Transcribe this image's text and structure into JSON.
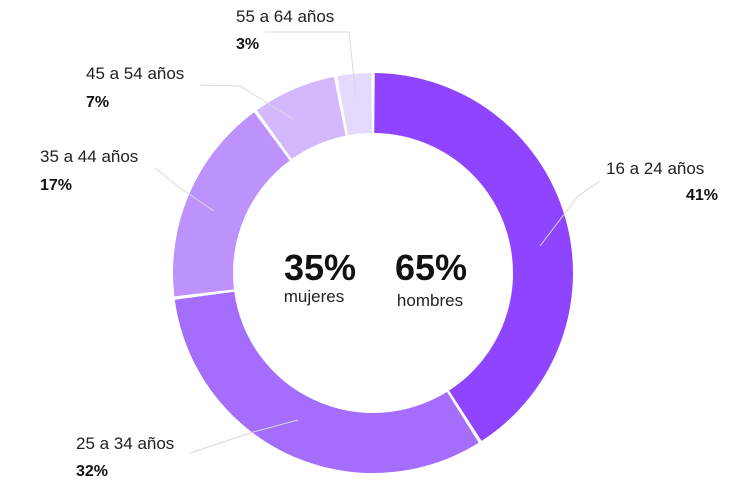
{
  "chart_data": {
    "type": "pie",
    "title": "",
    "categories": [
      "16 a 24 años",
      "25 a 34 años",
      "35 a 44 años",
      "45 a 54 años",
      "55 a 64 años"
    ],
    "values": [
      41,
      32,
      17,
      7,
      3
    ],
    "value_labels": [
      "41%",
      "32%",
      "17%",
      "7%",
      "3%"
    ],
    "colors": [
      "#8f45ff",
      "#a56dfb",
      "#bd92fd",
      "#d3b8fe",
      "#e6d9ff"
    ],
    "donut": true,
    "legend": "none",
    "center": {
      "women": {
        "value": "35%",
        "label": "mujeres"
      },
      "men": {
        "value": "65%",
        "label": "hombres"
      }
    }
  }
}
